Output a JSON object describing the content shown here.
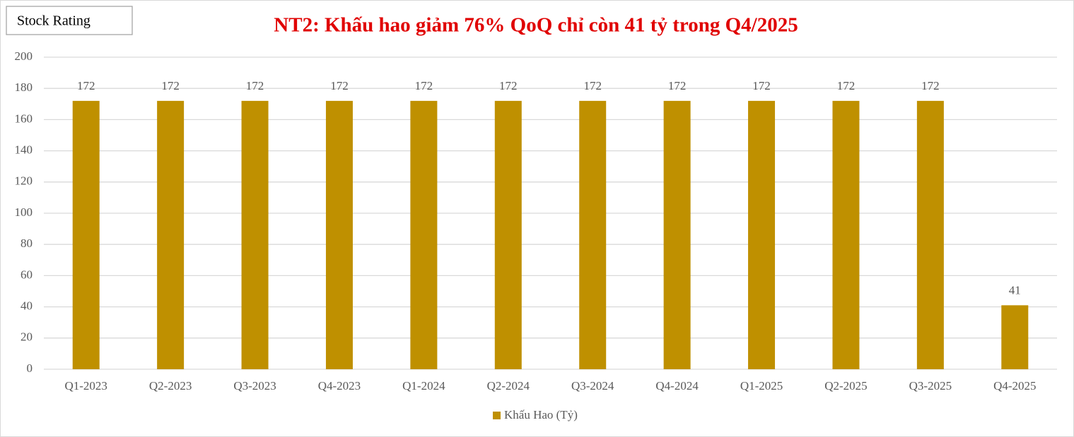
{
  "badge": "Stock Rating",
  "chart_data": {
    "type": "bar",
    "title": "NT2: Khấu hao giảm 76% QoQ chỉ còn 41 tỷ trong Q4/2025",
    "categories": [
      "Q1-2023",
      "Q2-2023",
      "Q3-2023",
      "Q4-2023",
      "Q1-2024",
      "Q2-2024",
      "Q3-2024",
      "Q4-2024",
      "Q1-2025",
      "Q2-2025",
      "Q3-2025",
      "Q4-2025"
    ],
    "series": [
      {
        "name": "Khấu Hao (Tỷ)",
        "color": "#bf9000",
        "values": [
          172,
          172,
          172,
          172,
          172,
          172,
          172,
          172,
          172,
          172,
          172,
          41
        ]
      }
    ],
    "ylim": [
      0,
      200
    ],
    "yticks": [
      0,
      20,
      40,
      60,
      80,
      100,
      120,
      140,
      160,
      180,
      200
    ],
    "grid": true,
    "legend": "bottom"
  }
}
